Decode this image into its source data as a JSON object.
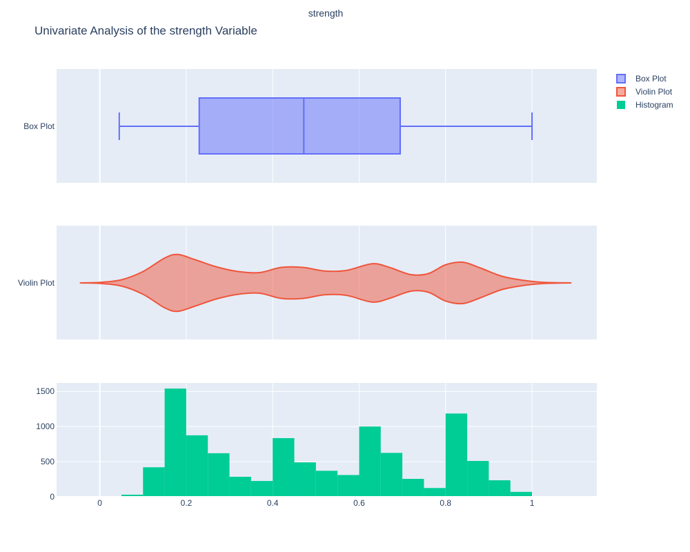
{
  "chart_data": {
    "type": "box+violin+histogram",
    "subtitle": "strength",
    "title": "Univariate Analysis of the strength Variable",
    "xlim": [
      -0.1,
      1.15
    ],
    "x_ticks": [
      0,
      0.2,
      0.4,
      0.6,
      0.8,
      1
    ],
    "x_tick_labels": [
      "0",
      "0.2",
      "0.4",
      "0.6",
      "0.8",
      "1"
    ],
    "legend": [
      {
        "name": "Box Plot",
        "color": "#636efa"
      },
      {
        "name": "Violin Plot",
        "color": "#ef553b"
      },
      {
        "name": "Histogram",
        "color": "#00cc96"
      }
    ],
    "box": {
      "category": "Box Plot",
      "min": 0.045,
      "q1": 0.23,
      "median": 0.472,
      "q3": 0.695,
      "max": 1.0
    },
    "violin": {
      "category": "Violin Plot",
      "x": [
        -0.045,
        0.0,
        0.05,
        0.1,
        0.15,
        0.18,
        0.22,
        0.27,
        0.32,
        0.37,
        0.42,
        0.47,
        0.52,
        0.57,
        0.63,
        0.67,
        0.72,
        0.76,
        0.8,
        0.84,
        0.88,
        0.93,
        0.98,
        1.03,
        1.09
      ],
      "density": [
        0.0,
        0.01,
        0.06,
        0.22,
        0.48,
        0.55,
        0.45,
        0.31,
        0.22,
        0.2,
        0.3,
        0.3,
        0.23,
        0.24,
        0.37,
        0.3,
        0.16,
        0.18,
        0.35,
        0.4,
        0.29,
        0.13,
        0.05,
        0.01,
        0.0
      ]
    },
    "histogram": {
      "bin_edges": [
        0.05,
        0.1,
        0.15,
        0.2,
        0.25,
        0.3,
        0.35,
        0.4,
        0.45,
        0.5,
        0.55,
        0.6,
        0.65,
        0.7,
        0.75,
        0.8,
        0.85,
        0.9,
        0.95,
        1.0
      ],
      "counts": [
        30,
        420,
        1540,
        875,
        620,
        285,
        225,
        835,
        490,
        370,
        310,
        1000,
        625,
        255,
        125,
        1185,
        510,
        235,
        70
      ],
      "ylim": [
        0,
        1620
      ],
      "y_ticks": [
        0,
        500,
        1000,
        1500
      ],
      "y_tick_labels": [
        "0",
        "500",
        "1000",
        "1500"
      ]
    }
  }
}
